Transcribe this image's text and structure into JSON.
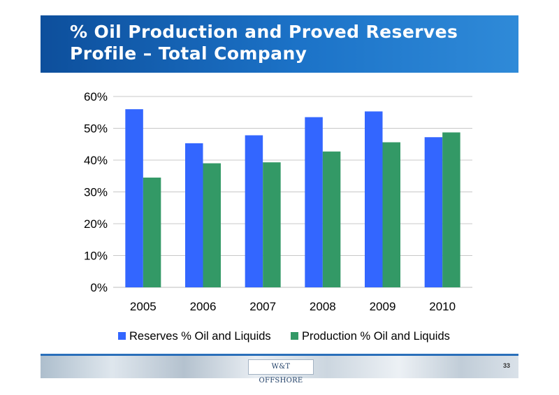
{
  "slide": {
    "title_line1": "% Oil Production and Proved Reserves",
    "title_line2": "Profile – Total Company",
    "logo_text": "W&T OFFSHORE",
    "page_number": "33"
  },
  "colors": {
    "reserves": "#3366ff",
    "production": "#339966",
    "title_bar": "#1c73c8"
  },
  "chart_data": {
    "type": "bar",
    "categories": [
      "2005",
      "2006",
      "2007",
      "2008",
      "2009",
      "2010"
    ],
    "series": [
      {
        "name": "Reserves % Oil and Liquids",
        "values": [
          56,
          45.3,
          47.8,
          53.5,
          55.3,
          47.2
        ]
      },
      {
        "name": "Production % Oil and Liquids",
        "values": [
          34.5,
          39,
          39.3,
          42.7,
          45.6,
          48.7
        ]
      }
    ],
    "ylim": [
      0,
      60
    ],
    "yticks": [
      0,
      10,
      20,
      30,
      40,
      50,
      60
    ],
    "ytick_labels": [
      "0%",
      "10%",
      "20%",
      "30%",
      "40%",
      "50%",
      "60%"
    ],
    "grid": true,
    "legend_position": "bottom",
    "title": "",
    "xlabel": "",
    "ylabel": ""
  }
}
